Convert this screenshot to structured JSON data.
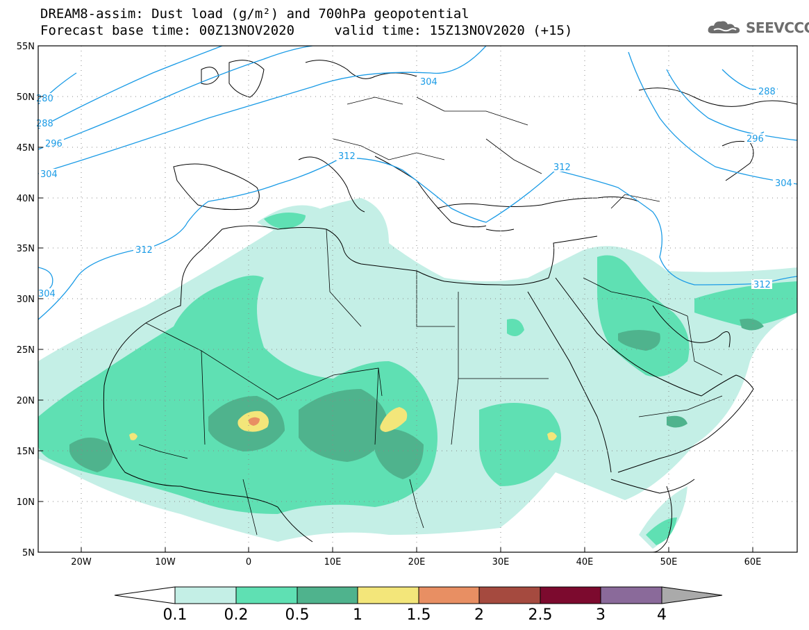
{
  "header": {
    "title_line1": "DREAM8-assim: Dust load (g/m²) and 700hPa geopotential",
    "title_line2": "Forecast base time: 00Z13NOV2020     valid time: 15Z13NOV2020 (+15)"
  },
  "logo": {
    "text": "SEEVCCC",
    "icon": "cloud-icon"
  },
  "map": {
    "lat_labels": [
      "55N",
      "50N",
      "45N",
      "40N",
      "35N",
      "30N",
      "25N",
      "20N",
      "15N",
      "10N",
      "5N"
    ],
    "lon_labels": [
      "20W",
      "10W",
      "0",
      "10E",
      "20E",
      "30E",
      "40E",
      "50E",
      "60E"
    ],
    "contour_labels": [
      "280",
      "288",
      "296",
      "304",
      "312",
      "304",
      "312",
      "312",
      "304",
      "288",
      "296",
      "312"
    ],
    "colors": {
      "contour": "#1a9be6",
      "border": "#000000"
    }
  },
  "colorbar": {
    "labels": [
      "0.1",
      "0.2",
      "0.5",
      "1",
      "1.5",
      "2",
      "2.5",
      "3",
      "4"
    ],
    "colors": [
      "#ffffff",
      "#c4efe6",
      "#5fe0b3",
      "#4fb38d",
      "#f3e67a",
      "#e88f63",
      "#a54a3f",
      "#7c0a2e",
      "#8a6a9a",
      "#aaaaaa"
    ]
  }
}
